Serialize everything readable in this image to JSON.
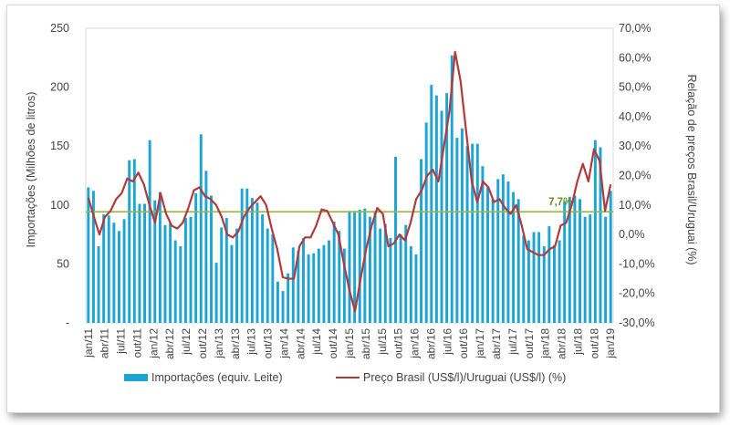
{
  "chart_data": {
    "type": "bar",
    "title": "",
    "y_left_label": "Importações (Milhões de litros)",
    "y_right_label": "Relação de preços Brasil/Uruguai (%)",
    "y_left_range": [
      0,
      250
    ],
    "y_left_ticks": [
      "-",
      "50",
      "100",
      "150",
      "200",
      "250"
    ],
    "y_right_range": [
      -30,
      70
    ],
    "y_right_ticks": [
      "-30,0%",
      "-20,0%",
      "-10,0%",
      "0,0%",
      "10,0%",
      "20,0%",
      "30,0%",
      "40,0%",
      "50,0%",
      "60,0%",
      "70,0%"
    ],
    "x_tick_labels": [
      "jan/11",
      "abr/11",
      "jul/11",
      "out/11",
      "jan/12",
      "abr/12",
      "jul/12",
      "out/12",
      "jan/13",
      "abr/13",
      "jul/13",
      "out/13",
      "jan/14",
      "abr/14",
      "jul/14",
      "out/14",
      "jan/15",
      "abr/15",
      "jul/15",
      "out/15",
      "jan/16",
      "abr/16",
      "jul/16",
      "out/16",
      "jan/17",
      "abr/17",
      "jul/17",
      "out/17",
      "jan/18",
      "abr/18",
      "jul/18",
      "out/18",
      "jan/19"
    ],
    "series": [
      {
        "name": "Importações (equiv. Leite)",
        "kind": "bar",
        "axis": "left",
        "color": "#1ba4d6",
        "values": [
          115,
          112,
          65,
          92,
          91,
          85,
          78,
          88,
          138,
          139,
          101,
          101,
          155,
          104,
          111,
          83,
          85,
          70,
          65,
          89,
          90,
          110,
          160,
          129,
          108,
          51,
          81,
          89,
          66,
          80,
          114,
          114,
          106,
          102,
          92,
          80,
          75,
          35,
          27,
          42,
          64,
          61,
          72,
          58,
          59,
          63,
          66,
          70,
          86,
          78,
          63,
          95,
          95,
          96,
          97,
          90,
          95,
          80,
          84,
          72,
          141,
          75,
          83,
          65,
          58,
          139,
          170,
          202,
          193,
          180,
          195,
          227,
          157,
          165,
          150,
          152,
          152,
          133,
          115,
          105,
          122,
          126,
          120,
          111,
          105,
          74,
          70,
          77,
          77,
          65,
          82,
          66,
          70,
          103,
          107,
          108,
          105,
          90,
          92,
          155,
          149,
          90,
          112
        ]
      },
      {
        "name": "Preço Brasil (US$/l)/Uruguai (US$/l) (%)",
        "kind": "line",
        "axis": "right",
        "color": "#b03a3a",
        "values": [
          12.5,
          6,
          0,
          6,
          8,
          12,
          14,
          19,
          18,
          21,
          17,
          10,
          4,
          14,
          7,
          3,
          2,
          4,
          9,
          15,
          16,
          13,
          12,
          10,
          6,
          0,
          -1,
          1,
          6,
          9,
          11,
          13,
          10,
          2,
          -5,
          -14.5,
          -15,
          -15,
          -4,
          -1,
          -1,
          3,
          8.5,
          8,
          4,
          0,
          -10,
          -19,
          -26,
          -15,
          -5,
          3,
          9,
          7,
          -4,
          -3,
          0,
          -2,
          4,
          12,
          15,
          20,
          22,
          18,
          30,
          42,
          62,
          52,
          35,
          18,
          11,
          18,
          16,
          11,
          12,
          9,
          7,
          10,
          3,
          -5,
          -6,
          -7,
          -7,
          -5,
          -4,
          3,
          4,
          10,
          18,
          24,
          18,
          29,
          25,
          8,
          17
        ]
      }
    ],
    "reference_line": {
      "label": "7,7%",
      "value": 7.7,
      "axis": "right",
      "color": "#9ab83c"
    },
    "legend": {
      "position": "bottom",
      "items": [
        "Importações (equiv. Leite)",
        "Preço Brasil (US$/l)/Uruguai (US$/l) (%)"
      ]
    }
  }
}
